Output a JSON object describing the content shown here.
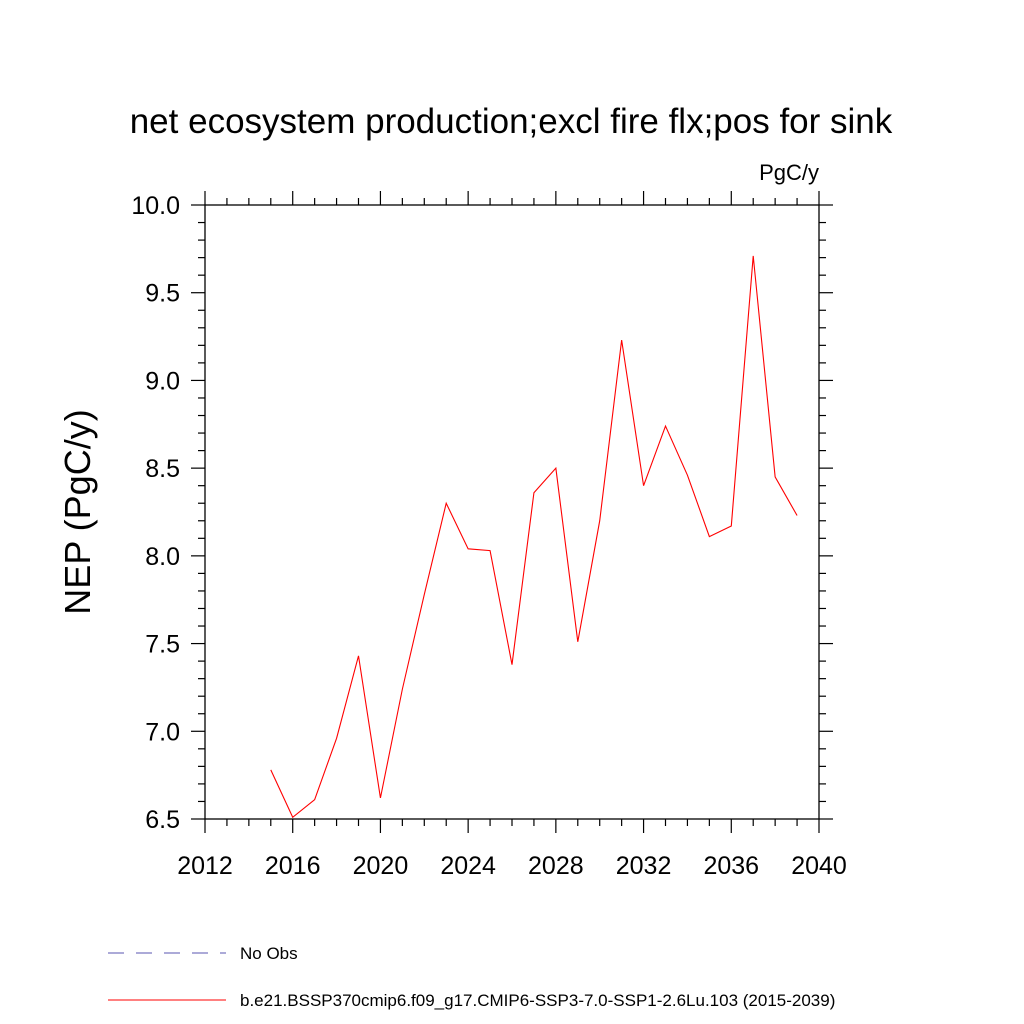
{
  "chart_data": {
    "type": "line",
    "title": "net ecosystem production;excl fire flx;pos for sink",
    "units_label": "PgC/y",
    "xlabel": "",
    "ylabel": "NEP  (PgC/y)",
    "xlim": [
      2012,
      2040
    ],
    "ylim": [
      6.5,
      10.0
    ],
    "x_ticks": [
      2012,
      2016,
      2020,
      2024,
      2028,
      2032,
      2036,
      2040
    ],
    "x_tick_labels": [
      "2012",
      "2016",
      "2020",
      "2024",
      "2028",
      "2032",
      "2036",
      "2040"
    ],
    "y_ticks": [
      6.5,
      7.0,
      7.5,
      8.0,
      8.5,
      9.0,
      9.5,
      10.0
    ],
    "y_tick_labels": [
      "6.5",
      "7.0",
      "7.5",
      "8.0",
      "8.5",
      "9.0",
      "9.5",
      "10.0"
    ],
    "series": [
      {
        "name": "b.e21.BSSP370cmip6.f09_g17.CMIP6-SSP3-7.0-SSP1-2.6Lu.103 (2015-2039)",
        "color": "#ff0000",
        "x": [
          2015,
          2016,
          2017,
          2018,
          2019,
          2020,
          2021,
          2022,
          2023,
          2024,
          2025,
          2026,
          2027,
          2028,
          2029,
          2030,
          2031,
          2032,
          2033,
          2034,
          2035,
          2036,
          2037,
          2038,
          2039
        ],
        "values": [
          6.78,
          6.51,
          6.61,
          6.96,
          7.43,
          6.62,
          7.24,
          7.78,
          8.3,
          8.04,
          8.03,
          7.38,
          8.36,
          8.5,
          7.51,
          8.2,
          9.23,
          8.4,
          8.74,
          8.46,
          8.11,
          8.17,
          9.71,
          8.45,
          8.23
        ]
      }
    ],
    "legend": [
      {
        "label": "No Obs",
        "color": "#5a55b0",
        "style": "dashed"
      },
      {
        "label": "b.e21.BSSP370cmip6.f09_g17.CMIP6-SSP3-7.0-SSP1-2.6Lu.103 (2015-2039)",
        "color": "#ff0000",
        "style": "solid"
      }
    ]
  }
}
